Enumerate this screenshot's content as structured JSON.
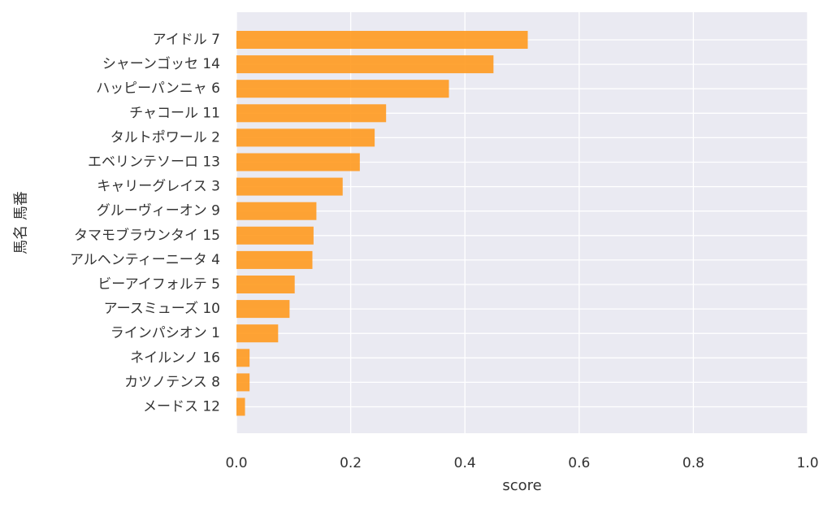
{
  "chart_data": {
    "type": "bar",
    "orientation": "horizontal",
    "title": "",
    "xlabel": "score",
    "ylabel": "馬名 馬番",
    "xlim": [
      0.0,
      1.0
    ],
    "xticks": [
      "0.0",
      "0.2",
      "0.4",
      "0.6",
      "0.8",
      "1.0"
    ],
    "grid": true,
    "legend": "none",
    "colors": {
      "bar": "#FF9A1F",
      "plot_background": "#EAEAF2",
      "grid": "#FFFFFF"
    },
    "categories": [
      "アイドル 7",
      "シャーンゴッセ 14",
      "ハッピーパンニャ 6",
      "チャコール 11",
      "タルトポワール 2",
      "エベリンテソーロ 13",
      "キャリーグレイス 3",
      "グルーヴィーオン 9",
      "タマモブラウンタイ 15",
      "アルヘンティーニータ 4",
      "ビーアイフォルテ 5",
      "アースミューズ 10",
      "ラインパシオン 1",
      "ネイルンノ 16",
      "カツノテンス 8",
      "メードス 12"
    ],
    "values": [
      0.51,
      0.45,
      0.372,
      0.262,
      0.242,
      0.216,
      0.186,
      0.14,
      0.135,
      0.133,
      0.102,
      0.093,
      0.073,
      0.023,
      0.023,
      0.015
    ]
  }
}
